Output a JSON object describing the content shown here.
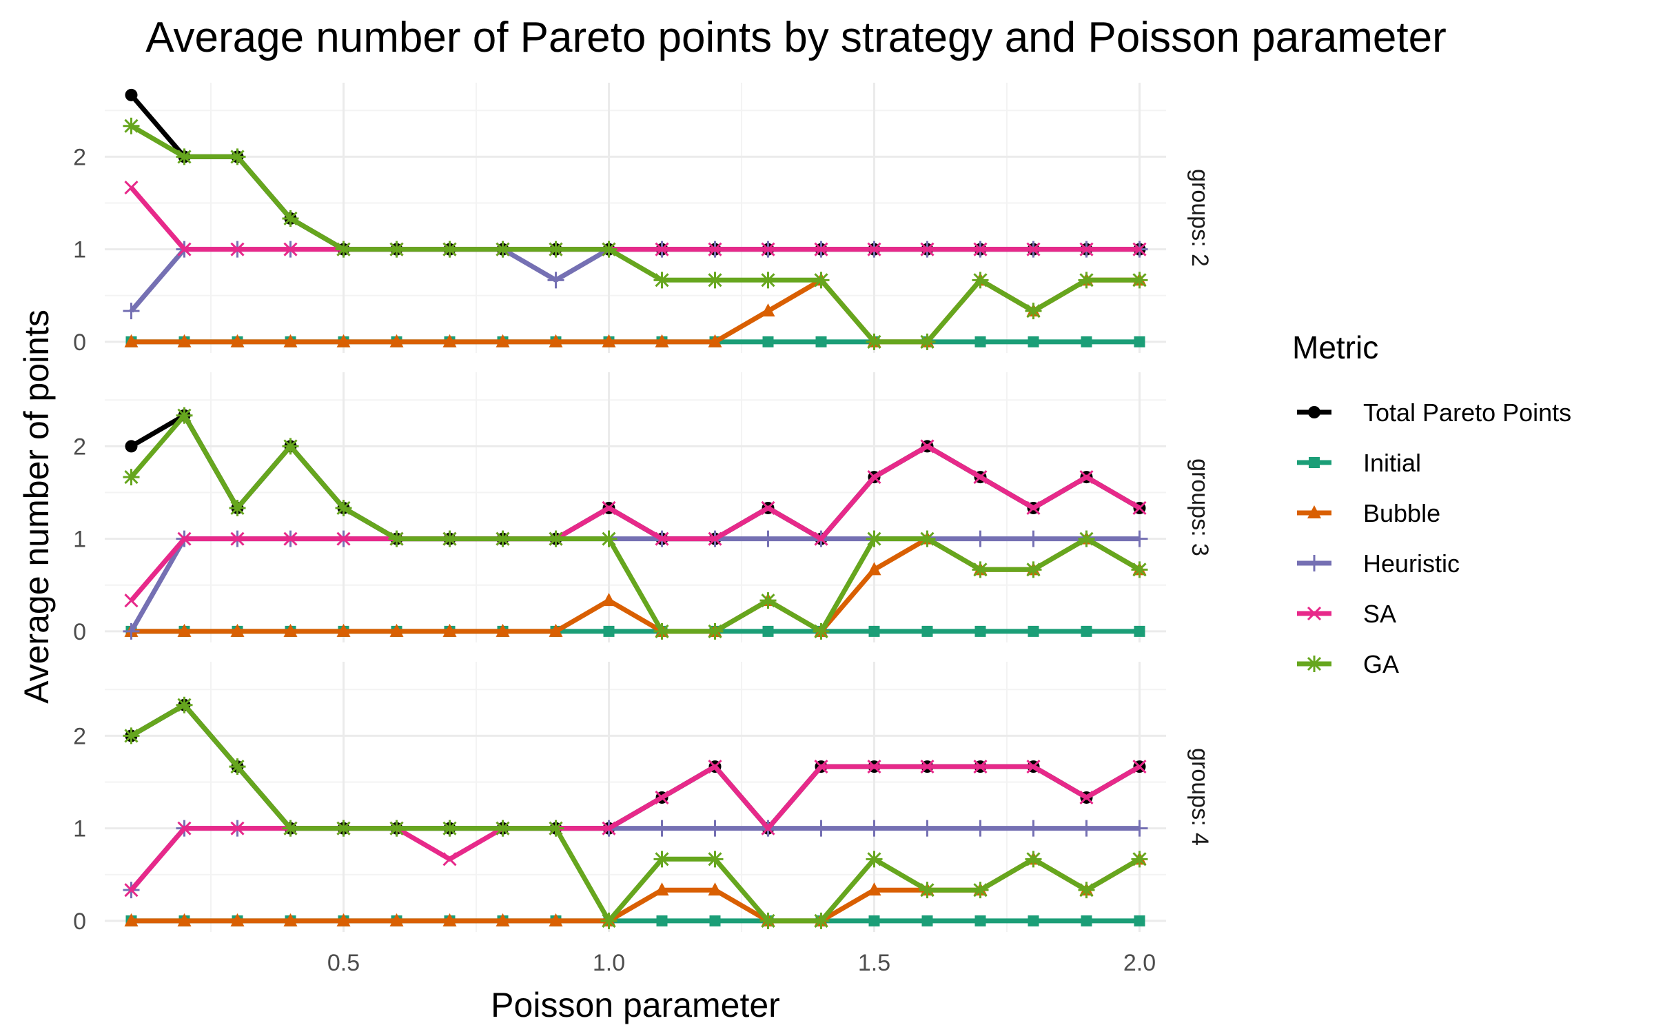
{
  "chart_data": {
    "type": "line",
    "title": "Average number of Pareto points by strategy and Poisson parameter",
    "xlabel": "Poisson parameter",
    "ylabel": "Average number of points",
    "xlim": [
      0.05,
      2.05
    ],
    "ylim": [
      -0.12,
      2.8
    ],
    "x_ticks": [
      0.5,
      1.0,
      1.5,
      2.0
    ],
    "x_tick_labels": [
      "0.5",
      "1.0",
      "1.5",
      "2.0"
    ],
    "y_ticks": [
      0,
      1,
      2
    ],
    "y_tick_labels": [
      "0",
      "1",
      "2"
    ],
    "grid": true,
    "legend": {
      "title": "Metric",
      "position": "right"
    },
    "x": [
      0.1,
      0.2,
      0.3,
      0.4,
      0.5,
      0.6,
      0.7,
      0.8,
      0.9,
      1.0,
      1.1,
      1.2,
      1.3,
      1.4,
      1.5,
      1.6,
      1.7,
      1.8,
      1.9,
      2.0
    ],
    "panels": [
      {
        "strip": "groups: 2",
        "series": [
          {
            "name": "Total Pareto Points",
            "color": "#000000",
            "marker": "circle",
            "values": [
              2.667,
              2.0,
              2.0,
              1.333,
              1,
              1,
              1,
              1,
              1,
              1,
              1,
              1,
              1,
              1,
              1,
              1,
              1,
              1,
              1,
              1
            ]
          },
          {
            "name": "Initial",
            "color": "#1b9e77",
            "marker": "square",
            "values": [
              0,
              0,
              0,
              0,
              0,
              0,
              0,
              0,
              0,
              0,
              0,
              0,
              0,
              0,
              0,
              0,
              0,
              0,
              0,
              0
            ]
          },
          {
            "name": "Bubble",
            "color": "#d95f02",
            "marker": "triangle",
            "values": [
              0,
              0,
              0,
              0,
              0,
              0,
              0,
              0,
              0,
              0,
              0,
              0,
              0.333,
              0.667,
              0,
              0,
              0.667,
              0.333,
              0.667,
              0.667
            ]
          },
          {
            "name": "Heuristic",
            "color": "#7570b3",
            "marker": "plus",
            "values": [
              0.333,
              1,
              1,
              1,
              1,
              1,
              1,
              1,
              0.667,
              1,
              1,
              1,
              1,
              1,
              1,
              1,
              1,
              1,
              1,
              1
            ]
          },
          {
            "name": "SA",
            "color": "#e7298a",
            "marker": "cross",
            "values": [
              1.667,
              1,
              1,
              1,
              1,
              1,
              1,
              1,
              1,
              1,
              1,
              1,
              1,
              1,
              1,
              1,
              1,
              1,
              1,
              1
            ]
          },
          {
            "name": "GA",
            "color": "#66a61e",
            "marker": "asterisk",
            "values": [
              2.333,
              2.0,
              2.0,
              1.333,
              1,
              1,
              1,
              1,
              1,
              1,
              0.667,
              0.667,
              0.667,
              0.667,
              0,
              0,
              0.667,
              0.333,
              0.667,
              0.667
            ]
          }
        ]
      },
      {
        "strip": "groups: 3",
        "series": [
          {
            "name": "Total Pareto Points",
            "color": "#000000",
            "marker": "circle",
            "values": [
              2.0,
              2.333,
              1.333,
              2.0,
              1.333,
              1,
              1,
              1,
              1,
              1.333,
              1,
              1,
              1.333,
              1,
              1.667,
              2.0,
              1.667,
              1.333,
              1.667,
              1.333
            ]
          },
          {
            "name": "Initial",
            "color": "#1b9e77",
            "marker": "square",
            "values": [
              0,
              0,
              0,
              0,
              0,
              0,
              0,
              0,
              0,
              0,
              0,
              0,
              0,
              0,
              0,
              0,
              0,
              0,
              0,
              0
            ]
          },
          {
            "name": "Bubble",
            "color": "#d95f02",
            "marker": "triangle",
            "values": [
              0,
              0,
              0,
              0,
              0,
              0,
              0,
              0,
              0,
              0.333,
              0,
              0,
              0.333,
              0,
              0.667,
              1,
              0.667,
              0.667,
              1,
              0.667
            ]
          },
          {
            "name": "Heuristic",
            "color": "#7570b3",
            "marker": "plus",
            "values": [
              0,
              1,
              1,
              1,
              1,
              1,
              1,
              1,
              1,
              1,
              1,
              1,
              1,
              1,
              1,
              1,
              1,
              1,
              1,
              1
            ]
          },
          {
            "name": "SA",
            "color": "#e7298a",
            "marker": "cross",
            "values": [
              0.333,
              1,
              1,
              1,
              1,
              1,
              1,
              1,
              1,
              1.333,
              1,
              1,
              1.333,
              1,
              1.667,
              2.0,
              1.667,
              1.333,
              1.667,
              1.333
            ]
          },
          {
            "name": "GA",
            "color": "#66a61e",
            "marker": "asterisk",
            "values": [
              1.667,
              2.333,
              1.333,
              2.0,
              1.333,
              1,
              1,
              1,
              1,
              1,
              0,
              0,
              0.333,
              0,
              1,
              1,
              0.667,
              0.667,
              1,
              0.667
            ]
          }
        ]
      },
      {
        "strip": "groups: 4",
        "series": [
          {
            "name": "Total Pareto Points",
            "color": "#000000",
            "marker": "circle",
            "values": [
              2.0,
              2.333,
              1.667,
              1,
              1,
              1,
              1,
              1,
              1,
              1,
              1.333,
              1.667,
              1,
              1.667,
              1.667,
              1.667,
              1.667,
              1.667,
              1.333,
              1.667
            ]
          },
          {
            "name": "Initial",
            "color": "#1b9e77",
            "marker": "square",
            "values": [
              0,
              0,
              0,
              0,
              0,
              0,
              0,
              0,
              0,
              0,
              0,
              0,
              0,
              0,
              0,
              0,
              0,
              0,
              0,
              0
            ]
          },
          {
            "name": "Bubble",
            "color": "#d95f02",
            "marker": "triangle",
            "values": [
              0,
              0,
              0,
              0,
              0,
              0,
              0,
              0,
              0,
              0,
              0.333,
              0.333,
              0,
              0,
              0.333,
              0.333,
              0.333,
              0.667,
              0.333,
              0.667
            ]
          },
          {
            "name": "Heuristic",
            "color": "#7570b3",
            "marker": "plus",
            "values": [
              0.333,
              1,
              1,
              1,
              1,
              1,
              1,
              1,
              1,
              1,
              1,
              1,
              1,
              1,
              1,
              1,
              1,
              1,
              1,
              1
            ]
          },
          {
            "name": "SA",
            "color": "#e7298a",
            "marker": "cross",
            "values": [
              0.333,
              1,
              1,
              1,
              1,
              1,
              0.667,
              1,
              1,
              1,
              1.333,
              1.667,
              1,
              1.667,
              1.667,
              1.667,
              1.667,
              1.667,
              1.333,
              1.667
            ]
          },
          {
            "name": "GA",
            "color": "#66a61e",
            "marker": "asterisk",
            "values": [
              2.0,
              2.333,
              1.667,
              1,
              1,
              1,
              1,
              1,
              1,
              0,
              0.667,
              0.667,
              0,
              0,
              0.667,
              0.333,
              0.333,
              0.667,
              0.333,
              0.667
            ]
          }
        ]
      }
    ]
  }
}
